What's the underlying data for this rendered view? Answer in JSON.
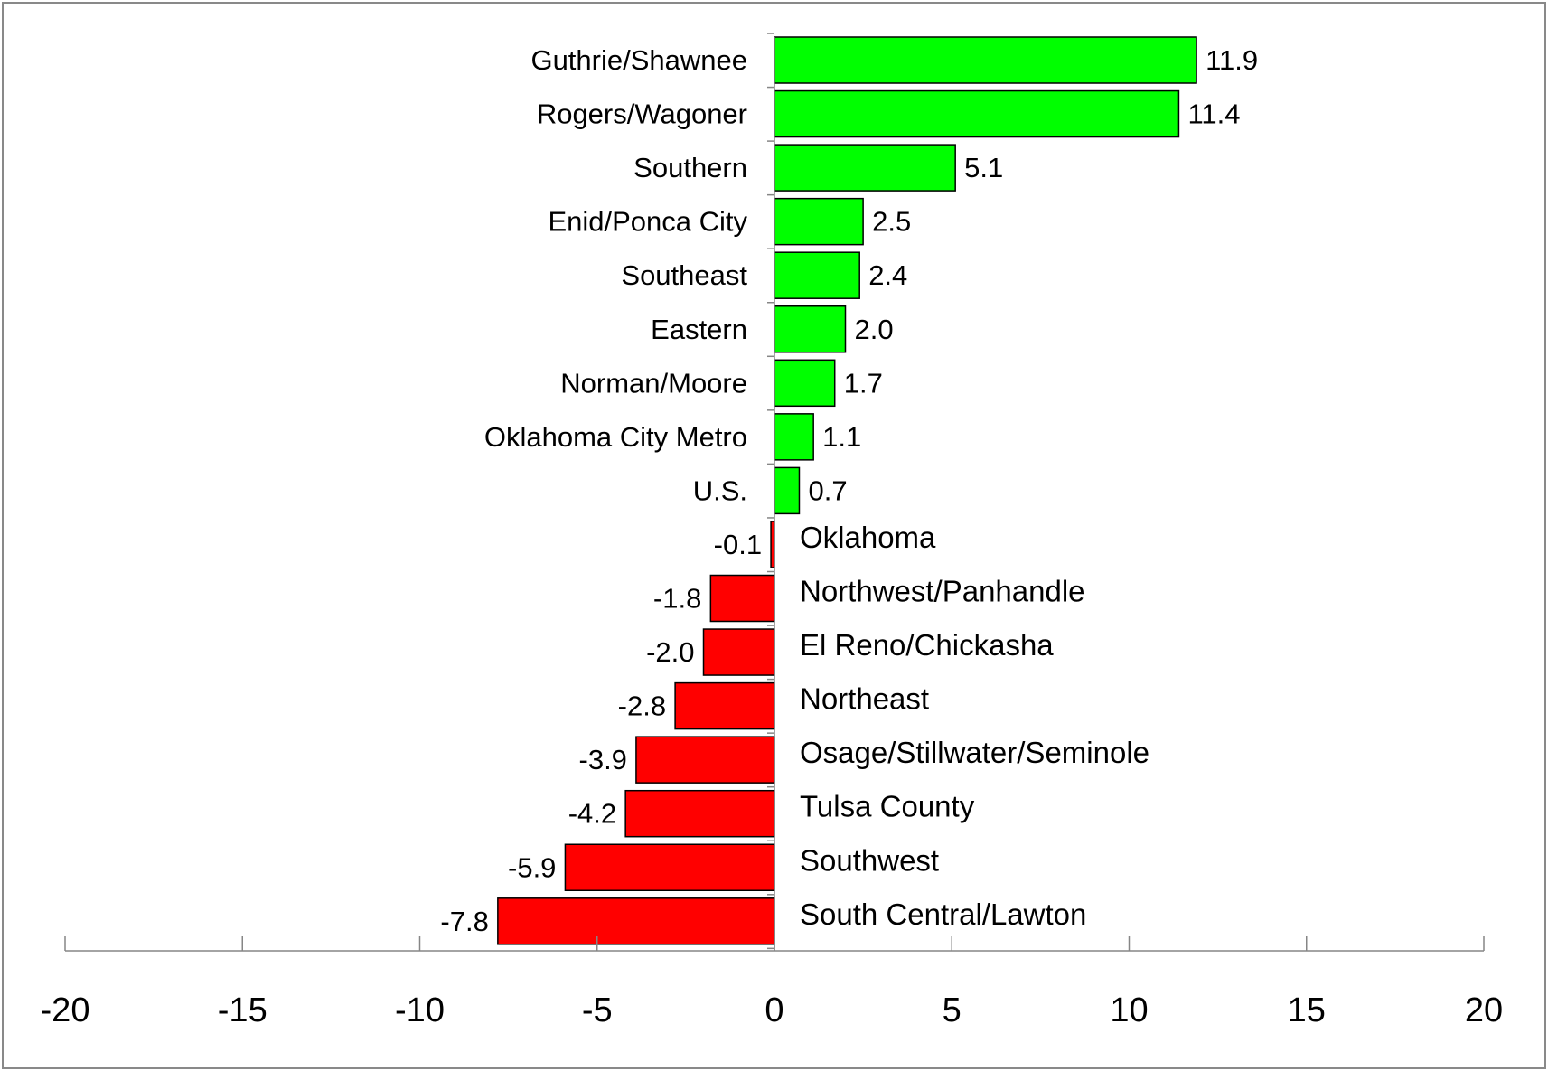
{
  "chart_data": {
    "type": "bar",
    "orientation": "horizontal",
    "title": "",
    "xlabel": "",
    "ylabel": "",
    "xlim": [
      -20,
      20
    ],
    "x_ticks": [
      -20,
      -15,
      -10,
      -5,
      0,
      5,
      10,
      15,
      20
    ],
    "grid": false,
    "legend": "none",
    "positive_color": "#00ff00",
    "negative_color": "#ff0000",
    "categories": [
      "Guthrie/Shawnee",
      "Rogers/Wagoner",
      "Southern",
      "Enid/Ponca City",
      "Southeast",
      "Eastern",
      "Norman/Moore",
      "Oklahoma City Metro",
      "U.S.",
      "Oklahoma",
      "Northwest/Panhandle",
      "El Reno/Chickasha",
      "Northeast",
      "Osage/Stillwater/Seminole",
      "Tulsa County",
      "Southwest",
      "South Central/Lawton"
    ],
    "values": [
      11.9,
      11.4,
      5.1,
      2.5,
      2.4,
      2.0,
      1.7,
      1.1,
      0.7,
      -0.1,
      -1.8,
      -2.0,
      -2.8,
      -3.9,
      -4.2,
      -5.9,
      -7.8
    ],
    "value_labels": [
      "11.9",
      "11.4",
      "5.1",
      "2.5",
      "2.4",
      "2.0",
      "1.7",
      "1.1",
      "0.7",
      "-0.1",
      "-1.8",
      "-2.0",
      "-2.8",
      "-3.9",
      "-4.2",
      "-5.9",
      "-7.8"
    ]
  }
}
